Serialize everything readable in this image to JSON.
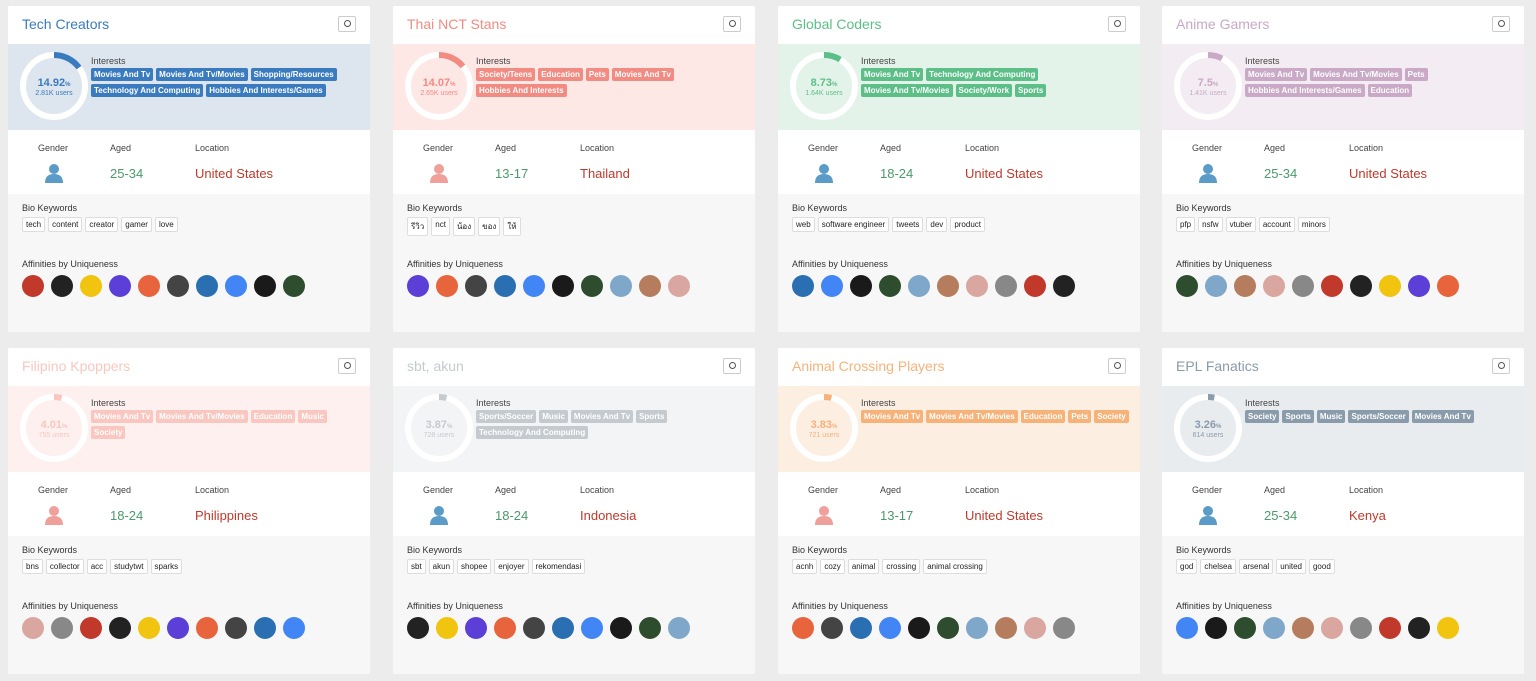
{
  "labels": {
    "interests": "Interests",
    "gender": "Gender",
    "aged": "Aged",
    "location": "Location",
    "bio": "Bio Keywords",
    "affinities": "Affinities by Uniqueness"
  },
  "cards": [
    {
      "title": "Tech Creators",
      "color": "#3a7bbf",
      "band": "#dde6ef",
      "percent": 14.92,
      "percent_sign": "%",
      "users": "2.81K users",
      "interests": [
        "Movies And Tv",
        "Movies And Tv/Movies",
        "Shopping/Resources",
        "Technology And Computing",
        "Hobbies And Interests/Games"
      ],
      "gender": "male",
      "aged": "25-34",
      "location": "United States",
      "bio_keywords": [
        "tech",
        "content",
        "creator",
        "gamer",
        "love"
      ]
    },
    {
      "title": "Thai NCT Stans",
      "color": "#f28b82",
      "band": "#fde8e6",
      "percent": 14.07,
      "percent_sign": "%",
      "users": "2.65K users",
      "interests": [
        "Society/Teens",
        "Education",
        "Pets",
        "Movies And Tv",
        "Hobbies And Interests"
      ],
      "gender": "female",
      "aged": "13-17",
      "location": "Thailand",
      "bio_keywords": [
        "รีวิว",
        "nct",
        "น้อง",
        "ของ",
        "ให้"
      ]
    },
    {
      "title": "Global Coders",
      "color": "#5cbf87",
      "band": "#e3f3ea",
      "percent": 8.73,
      "percent_sign": "%",
      "users": "1.64K users",
      "interests": [
        "Movies And Tv",
        "Technology And Computing",
        "Movies And Tv/Movies",
        "Society/Work",
        "Sports"
      ],
      "gender": "male",
      "aged": "18-24",
      "location": "United States",
      "bio_keywords": [
        "web",
        "software engineer",
        "tweets",
        "dev",
        "product"
      ]
    },
    {
      "title": "Anime Gamers",
      "color": "#c9a9c6",
      "band": "#f3ecf2",
      "percent": 7.5,
      "percent_sign": "%",
      "users": "1.41K users",
      "interests": [
        "Movies And Tv",
        "Movies And Tv/Movies",
        "Pets",
        "Hobbies And Interests/Games",
        "Education"
      ],
      "gender": "male",
      "aged": "25-34",
      "location": "United States",
      "bio_keywords": [
        "pfp",
        "nsfw",
        "vtuber",
        "account",
        "minors"
      ]
    },
    {
      "title": "Filipino Kpoppers",
      "color": "#f9c7c0",
      "band": "#fdf0ee",
      "percent": 4.01,
      "percent_sign": "%",
      "users": "755 users",
      "interests": [
        "Movies And Tv",
        "Movies And Tv/Movies",
        "Education",
        "Music",
        "Society"
      ],
      "gender": "female",
      "aged": "18-24",
      "location": "Philippines",
      "bio_keywords": [
        "bns",
        "collector",
        "acc",
        "studytwt",
        "sparks"
      ]
    },
    {
      "title": "sbt, akun",
      "color": "#c5cacf",
      "band": "#f3f4f5",
      "percent": 3.87,
      "percent_sign": "%",
      "users": "728 users",
      "interests": [
        "Sports/Soccer",
        "Music",
        "Movies And Tv",
        "Sports",
        "Technology And Computing"
      ],
      "gender": "male",
      "aged": "18-24",
      "location": "Indonesia",
      "bio_keywords": [
        "sbt",
        "akun",
        "shopee",
        "enjoyer",
        "rekomendasi"
      ]
    },
    {
      "title": "Animal Crossing Players",
      "color": "#f7b27a",
      "band": "#fdeee2",
      "percent": 3.83,
      "percent_sign": "%",
      "users": "721 users",
      "interests": [
        "Movies And Tv",
        "Movies And Tv/Movies",
        "Education",
        "Pets",
        "Society"
      ],
      "gender": "female",
      "aged": "13-17",
      "location": "United States",
      "bio_keywords": [
        "acnh",
        "cozy",
        "animal",
        "crossing",
        "animal crossing"
      ]
    },
    {
      "title": "EPL Fanatics",
      "color": "#8a9bab",
      "band": "#e8ecef",
      "percent": 3.26,
      "percent_sign": "%",
      "users": "614 users",
      "interests": [
        "Society",
        "Sports",
        "Music",
        "Sports/Soccer",
        "Movies And Tv"
      ],
      "gender": "male",
      "aged": "25-34",
      "location": "Kenya",
      "bio_keywords": [
        "god",
        "chelsea",
        "arsenal",
        "united",
        "good"
      ]
    }
  ]
}
